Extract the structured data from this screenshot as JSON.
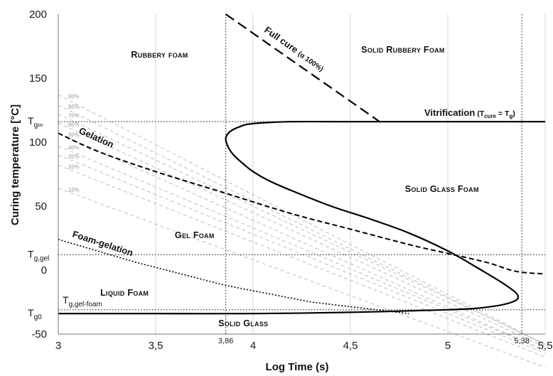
{
  "chart_data": {
    "type": "line",
    "xlabel": "Log Time (s)",
    "ylabel": "Curing temperature [°C]",
    "xlim": [
      3,
      5.5
    ],
    "ylim": [
      -50,
      200
    ],
    "x_ticks": [
      "3",
      "3,5",
      "3,86",
      "4",
      "4,5",
      "5",
      "5,38",
      "5,5"
    ],
    "y_ticks": [
      "200",
      "150",
      "100",
      "50",
      "0",
      "-50"
    ],
    "grid": "vertical",
    "reference_lines": {
      "tg_inf": 116,
      "tg_gel": 12,
      "tg_gel_foam": -31,
      "tg0": -34,
      "x_gel_foam": 3.86,
      "x_max": 5.38
    },
    "tg_labels": [
      {
        "base": "T",
        "sub": "g∞",
        "y": 116
      },
      {
        "base": "T",
        "sub": "g,gel",
        "y": 12
      },
      {
        "base": "T",
        "sub": "g,gel-foam",
        "y": -24
      },
      {
        "base": "T",
        "sub": "g0",
        "y": -34
      }
    ],
    "vitrification_label": {
      "main": "Vitrification",
      "paren_open": "(T",
      "sub1": "cure",
      "eq": " = T",
      "sub2": "g",
      "paren_close": ")"
    },
    "full_cure_label": {
      "main": "Full cure",
      "paren": "(α 100%)"
    },
    "curve_labels": {
      "gelation": "Gelation",
      "foam_gelation": "Foam-gelation"
    },
    "regions": [
      {
        "label": "Rubbery foam",
        "x": 3.52,
        "y": 166
      },
      {
        "label": "Solid Rubbery Foam",
        "x": 4.77,
        "y": 170
      },
      {
        "label": "Gel Foam",
        "x": 3.7,
        "y": 25
      },
      {
        "label": "Solid Glass Foam",
        "x": 4.97,
        "y": 61
      },
      {
        "label": "Liquid Foam",
        "x": 3.34,
        "y": -20
      },
      {
        "label": "Solid Glass",
        "x": 3.95,
        "y": -44
      }
    ],
    "series": [
      {
        "style": "solid",
        "points": [
          [
            3.0,
            -34
          ],
          [
            3.5,
            -34
          ],
          [
            4.0,
            -34
          ],
          [
            4.5,
            -33
          ],
          [
            5.0,
            -31
          ],
          [
            5.2,
            -29
          ],
          [
            5.33,
            -25
          ],
          [
            5.36,
            -20
          ],
          [
            5.3,
            -12
          ],
          [
            5.15,
            2
          ],
          [
            5.0,
            15
          ],
          [
            4.8,
            29
          ],
          [
            4.6,
            40
          ],
          [
            4.4,
            50
          ],
          [
            4.2,
            62
          ],
          [
            4.08,
            70
          ],
          [
            4.0,
            77
          ],
          [
            3.95,
            83
          ],
          [
            3.9,
            90
          ],
          [
            3.87,
            97
          ],
          [
            3.86,
            103
          ],
          [
            3.88,
            108
          ],
          [
            3.93,
            112
          ],
          [
            4.0,
            114.5
          ],
          [
            4.2,
            116
          ],
          [
            4.5,
            116
          ],
          [
            5.0,
            116
          ],
          [
            5.5,
            116
          ]
        ]
      },
      {
        "style": "long-dash",
        "points": [
          [
            3.86,
            200
          ],
          [
            4.65,
            116
          ]
        ]
      },
      {
        "style": "dash",
        "points": [
          [
            3.0,
            107
          ],
          [
            3.2,
            93
          ],
          [
            3.5,
            77
          ],
          [
            3.86,
            60
          ],
          [
            4.2,
            44
          ],
          [
            4.5,
            32
          ],
          [
            4.8,
            20
          ],
          [
            5.0,
            13
          ],
          [
            5.2,
            6
          ],
          [
            5.35,
            -1
          ],
          [
            5.5,
            -3
          ]
        ]
      },
      {
        "style": "dot",
        "points": [
          [
            3.0,
            24
          ],
          [
            3.4,
            6
          ],
          [
            3.86,
            -12
          ],
          [
            4.3,
            -25
          ],
          [
            4.8,
            -34
          ]
        ]
      }
    ],
    "cure_isolines": [
      {
        "label": "90%",
        "start": 137,
        "slope": -78
      },
      {
        "label": "80%",
        "start": 129,
        "slope": -75
      },
      {
        "label": "70%",
        "start": 122,
        "slope": -72
      },
      {
        "label": "60%",
        "start": 115,
        "slope": -70
      },
      {
        "label": "50%",
        "start": 107,
        "slope": -68
      },
      {
        "label": "40%",
        "start": 97,
        "slope": -64
      },
      {
        "label": "30%",
        "start": 90,
        "slope": -62
      },
      {
        "label": "20%",
        "start": 82,
        "slope": -60
      },
      {
        "label": "10%",
        "start": 64,
        "slope": -56
      }
    ]
  }
}
